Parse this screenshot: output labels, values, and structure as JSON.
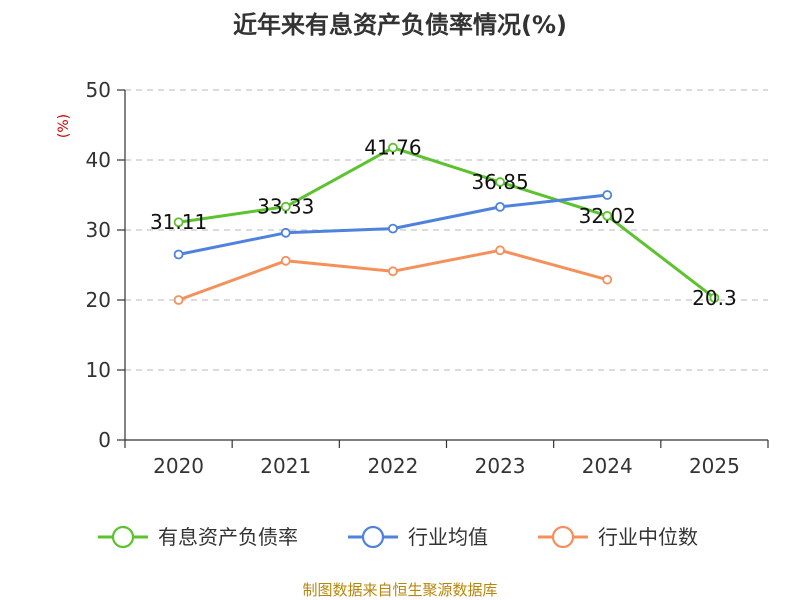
{
  "chart_data": {
    "type": "line",
    "title": "近年来有息资产负债率情况(%)",
    "ylabel": "(%)",
    "categories": [
      "2020",
      "2021",
      "2022",
      "2023",
      "2024",
      "2025"
    ],
    "ylim": [
      0,
      50
    ],
    "yticks": [
      "0",
      "10",
      "20",
      "30",
      "40",
      "50"
    ],
    "grid": true,
    "legend_position": "bottom",
    "series": [
      {
        "name": "有息资产负债率",
        "color": "#5cc22e",
        "values": [
          31.11,
          33.33,
          41.76,
          36.85,
          32.02,
          20.3
        ],
        "labels": [
          "31.11",
          "33.33",
          "41.76",
          "36.85",
          "32.02",
          "20.3"
        ]
      },
      {
        "name": "行业均值",
        "color": "#4e82dd",
        "values": [
          26.5,
          29.6,
          30.2,
          33.3,
          35.0,
          null
        ]
      },
      {
        "name": "行业中位数",
        "color": "#f5905a",
        "values": [
          20.0,
          25.6,
          24.1,
          27.1,
          22.9,
          null
        ]
      }
    ],
    "source": "制图数据来自恒生聚源数据库"
  }
}
